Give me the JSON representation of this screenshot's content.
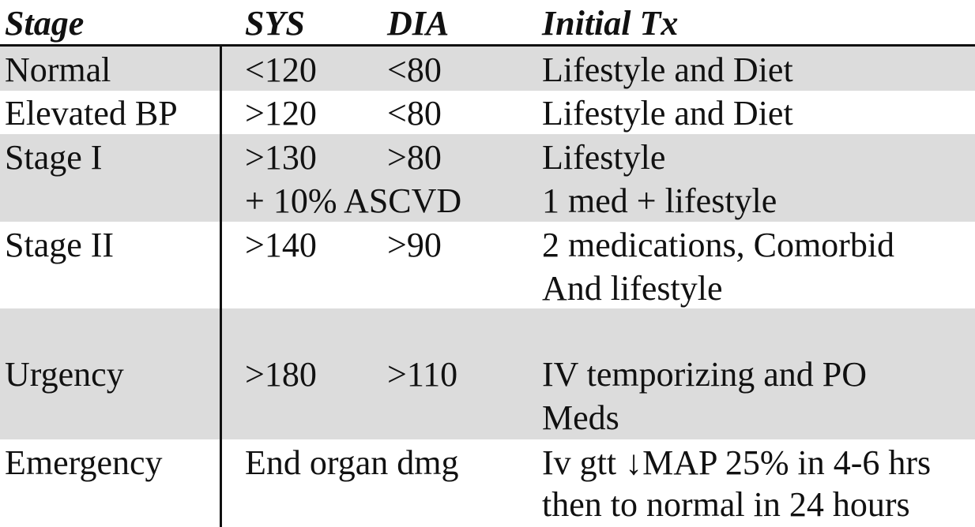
{
  "header": {
    "stage": "Stage",
    "sys": "SYS",
    "dia": "DIA",
    "tx": "Initial Tx"
  },
  "rows": [
    {
      "stage": "Normal",
      "sys": "<120",
      "dia": "<80",
      "tx": "Lifestyle and Diet"
    },
    {
      "stage": "Elevated BP",
      "sys": ">120",
      "dia": "<80",
      "tx": "Lifestyle and Diet"
    },
    {
      "stage": "Stage I",
      "sys": ">130",
      "dia": ">80",
      "tx": "Lifestyle",
      "sys2": "+ 10% ASCVD",
      "tx2": "1 med + lifestyle"
    },
    {
      "stage": "Stage II",
      "sys": ">140",
      "dia": ">90",
      "tx": "2 medications, Comorbid",
      "tx2": "And lifestyle"
    },
    {
      "stage": "Urgency",
      "sys": ">180",
      "dia": ">110",
      "tx": "IV temporizing and PO",
      "tx2": "Meds"
    },
    {
      "stage": "Emergency",
      "sys": "End organ dmg",
      "tx": "Iv gtt ↓MAP 25% in 4-6 hrs",
      "tx2": "then to normal in 24 hours"
    }
  ]
}
